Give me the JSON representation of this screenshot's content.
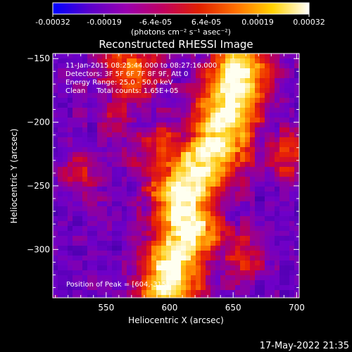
{
  "colorbar": {
    "ticks": [
      "-0.00032",
      "-0.00019",
      "-6.4e-05",
      "6.4e-05",
      "0.00019",
      "0.00032"
    ],
    "unit_label": "(photons cm⁻² s⁻¹ asec⁻²)",
    "stops": [
      "#0000ff",
      "#5a00cc",
      "#9a00b0",
      "#c00060",
      "#e02000",
      "#ff7000",
      "#ffd200",
      "#ffffff"
    ]
  },
  "chart_data": {
    "type": "heatmap",
    "title": "Reconstructed RHESSI Image",
    "xlabel": "Heliocentric X (arcsec)",
    "ylabel": "Heliocentric Y (arcsec)",
    "xlim": [
      508,
      702
    ],
    "ylim": [
      -338,
      -146
    ],
    "xticks": [
      550,
      600,
      650,
      700
    ],
    "yticks": [
      -150,
      -200,
      -250,
      -300
    ],
    "color_range": [
      -0.00032,
      0.00032
    ],
    "colors": {
      "background": "#000000",
      "low": "#5a00c8",
      "mid": "#c00050",
      "high": "#ffffff"
    },
    "annotations": {
      "time_range": "11-Jan-2015 08:25:44.000 to 08:27:16.000",
      "detectors": "Detectors: 3F 5F 6F 7F 8F 9F, Att 0",
      "energy": "Energy Range: 25.0 - 50.0 keV",
      "clean": "Clean     Total counts: 1.65E+05",
      "peak": "Position of Peak = [604,-315]"
    }
  },
  "footer": {
    "timestamp": "17-May-2022 21:35"
  }
}
